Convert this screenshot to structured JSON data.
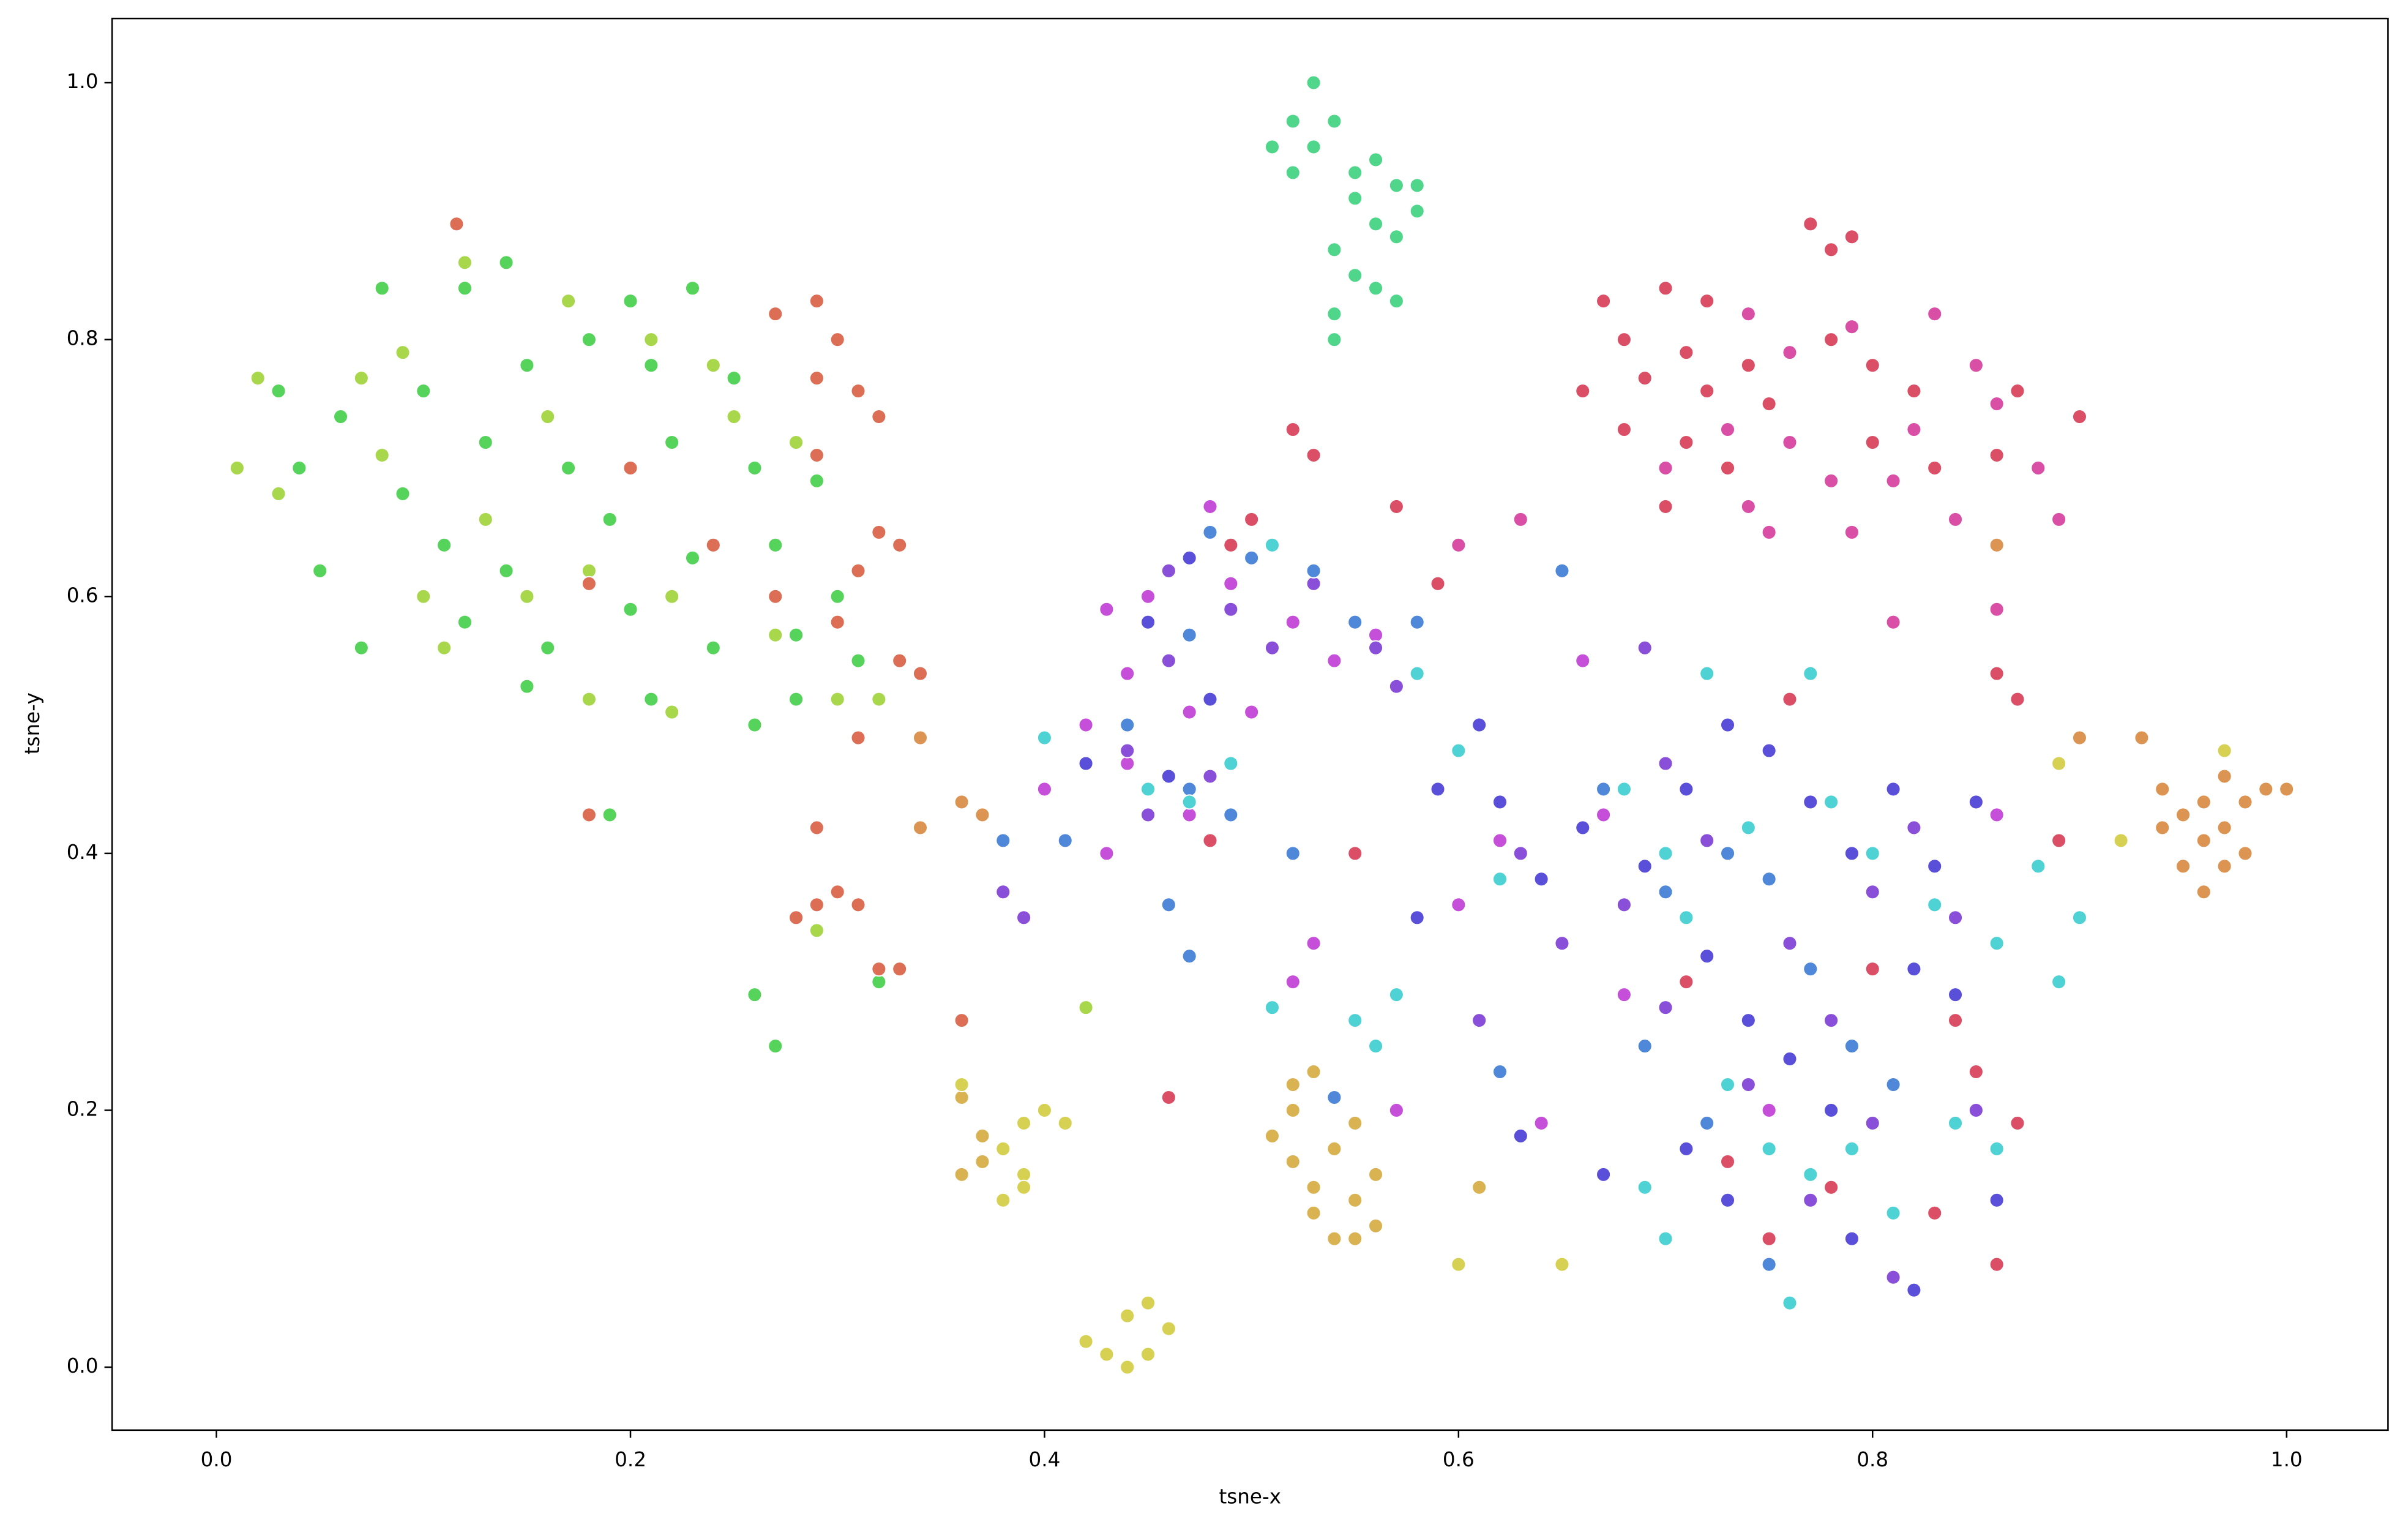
{
  "chart_data": {
    "type": "scatter",
    "xlabel": "tsne-x",
    "ylabel": "tsne-y",
    "xlim": [
      -0.0504,
      1.049
    ],
    "ylim": [
      -0.049,
      1.05
    ],
    "xticks": [
      {
        "value": 0,
        "label": "0.0"
      },
      {
        "value": 0.2,
        "label": "0.2"
      },
      {
        "value": 0.4,
        "label": "0.4"
      },
      {
        "value": 0.6,
        "label": "0.6"
      },
      {
        "value": 0.8,
        "label": "0.8"
      },
      {
        "value": 1,
        "label": "1.0"
      }
    ],
    "yticks": [
      {
        "value": 0,
        "label": "0.0"
      },
      {
        "value": 0.2,
        "label": "0.2"
      },
      {
        "value": 0.4,
        "label": "0.4"
      },
      {
        "value": 0.6,
        "label": "0.6"
      },
      {
        "value": 0.8,
        "label": "0.8"
      },
      {
        "value": 1,
        "label": "1.0"
      }
    ],
    "series": [
      {
        "color": "#56d35a",
        "x": [
          0.12,
          0.14,
          0.2,
          0.23,
          0.08,
          0.03,
          0.06,
          0.1,
          0.15,
          0.18,
          0.21,
          0.25,
          0.04,
          0.09,
          0.13,
          0.17,
          0.22,
          0.26,
          0.29,
          0.05,
          0.11,
          0.14,
          0.19,
          0.23,
          0.27,
          0.3,
          0.07,
          0.12,
          0.16,
          0.2,
          0.24,
          0.28,
          0.31,
          0.15,
          0.21,
          0.26,
          0.28,
          0.19,
          0.32,
          0.26,
          0.27
        ],
        "y": [
          0.84,
          0.86,
          0.83,
          0.84,
          0.84,
          0.76,
          0.74,
          0.76,
          0.78,
          0.8,
          0.78,
          0.77,
          0.7,
          0.68,
          0.72,
          0.7,
          0.72,
          0.7,
          0.69,
          0.62,
          0.64,
          0.62,
          0.66,
          0.63,
          0.64,
          0.6,
          0.56,
          0.58,
          0.56,
          0.59,
          0.56,
          0.57,
          0.55,
          0.53,
          0.52,
          0.5,
          0.52,
          0.43,
          0.3,
          0.29,
          0.25
        ]
      },
      {
        "color": "#a8d74c",
        "x": [
          0.01,
          0.02,
          0.07,
          0.09,
          0.12,
          0.17,
          0.21,
          0.24,
          0.03,
          0.08,
          0.13,
          0.16,
          0.2,
          0.25,
          0.28,
          0.1,
          0.15,
          0.18,
          0.22,
          0.27,
          0.11,
          0.18,
          0.22,
          0.3,
          0.32,
          0.29,
          0.42
        ],
        "y": [
          0.7,
          0.77,
          0.77,
          0.79,
          0.86,
          0.83,
          0.8,
          0.78,
          0.68,
          0.71,
          0.66,
          0.74,
          0.7,
          0.74,
          0.72,
          0.6,
          0.6,
          0.62,
          0.6,
          0.57,
          0.56,
          0.52,
          0.51,
          0.52,
          0.52,
          0.34,
          0.28
        ]
      },
      {
        "color": "#dc6e55",
        "x": [
          0.116,
          0.27,
          0.29,
          0.3,
          0.29,
          0.31,
          0.32,
          0.2,
          0.29,
          0.27,
          0.31,
          0.32,
          0.33,
          0.3,
          0.33,
          0.34,
          0.31,
          0.18,
          0.18,
          0.29,
          0.29,
          0.3,
          0.31,
          0.28,
          0.32,
          0.33,
          0.36,
          0.24
        ],
        "y": [
          0.89,
          0.82,
          0.83,
          0.8,
          0.77,
          0.76,
          0.74,
          0.7,
          0.71,
          0.6,
          0.62,
          0.65,
          0.64,
          0.58,
          0.55,
          0.54,
          0.49,
          0.61,
          0.43,
          0.42,
          0.36,
          0.37,
          0.36,
          0.35,
          0.31,
          0.31,
          0.27,
          0.64
        ]
      },
      {
        "color": "#4fd68b",
        "x": [
          0.51,
          0.52,
          0.53,
          0.54,
          0.53,
          0.55,
          0.56,
          0.57,
          0.58,
          0.55,
          0.56,
          0.54,
          0.57,
          0.55,
          0.56,
          0.54,
          0.57,
          0.54,
          0.52,
          0.58
        ],
        "y": [
          0.95,
          0.97,
          1.0,
          0.97,
          0.95,
          0.93,
          0.94,
          0.92,
          0.92,
          0.91,
          0.89,
          0.87,
          0.88,
          0.85,
          0.84,
          0.82,
          0.83,
          0.8,
          0.93,
          0.9
        ]
      },
      {
        "color": "#db4f66",
        "x": [
          0.67,
          0.7,
          0.72,
          0.68,
          0.71,
          0.74,
          0.66,
          0.69,
          0.72,
          0.75,
          0.68,
          0.71,
          0.73,
          0.7,
          0.77,
          0.78,
          0.79,
          0.78,
          0.8,
          0.82,
          0.8,
          0.83,
          0.86,
          0.87,
          0.9,
          0.86,
          0.87,
          0.52,
          0.53,
          0.57,
          0.59,
          0.49,
          0.5,
          0.71,
          0.73,
          0.75,
          0.84,
          0.85,
          0.87,
          0.83,
          0.86,
          0.78,
          0.89,
          0.8,
          0.46,
          0.48,
          0.55,
          0.76
        ],
        "y": [
          0.83,
          0.84,
          0.83,
          0.8,
          0.79,
          0.78,
          0.76,
          0.77,
          0.76,
          0.75,
          0.73,
          0.72,
          0.7,
          0.67,
          0.89,
          0.87,
          0.88,
          0.8,
          0.78,
          0.76,
          0.72,
          0.7,
          0.71,
          0.76,
          0.74,
          0.54,
          0.52,
          0.73,
          0.71,
          0.67,
          0.61,
          0.64,
          0.66,
          0.3,
          0.16,
          0.1,
          0.27,
          0.23,
          0.19,
          0.12,
          0.08,
          0.14,
          0.41,
          0.31,
          0.21,
          0.41,
          0.4,
          0.52
        ]
      },
      {
        "color": "#d94fa5",
        "x": [
          0.74,
          0.76,
          0.79,
          0.83,
          0.85,
          0.86,
          0.82,
          0.76,
          0.78,
          0.81,
          0.84,
          0.86,
          0.88,
          0.89,
          0.74,
          0.75,
          0.79,
          0.7,
          0.73,
          0.86,
          0.81,
          0.6,
          0.63
        ],
        "y": [
          0.82,
          0.79,
          0.81,
          0.82,
          0.78,
          0.75,
          0.73,
          0.72,
          0.69,
          0.69,
          0.66,
          0.64,
          0.7,
          0.66,
          0.67,
          0.65,
          0.65,
          0.7,
          0.73,
          0.59,
          0.58,
          0.64,
          0.66
        ]
      },
      {
        "color": "#c54fd9",
        "x": [
          0.48,
          0.49,
          0.52,
          0.54,
          0.56,
          0.45,
          0.43,
          0.44,
          0.47,
          0.5,
          0.42,
          0.43,
          0.47,
          0.52,
          0.53,
          0.57,
          0.64,
          0.66,
          0.67,
          0.68,
          0.6,
          0.62,
          0.4,
          0.44,
          0.75,
          0.86
        ],
        "y": [
          0.67,
          0.61,
          0.58,
          0.55,
          0.57,
          0.6,
          0.59,
          0.54,
          0.51,
          0.51,
          0.5,
          0.4,
          0.43,
          0.3,
          0.33,
          0.2,
          0.19,
          0.55,
          0.43,
          0.29,
          0.36,
          0.41,
          0.45,
          0.47,
          0.2,
          0.43
        ]
      },
      {
        "color": "#8a4fd9",
        "x": [
          0.46,
          0.49,
          0.51,
          0.53,
          0.56,
          0.57,
          0.46,
          0.44,
          0.48,
          0.45,
          0.39,
          0.38,
          0.63,
          0.65,
          0.68,
          0.7,
          0.72,
          0.76,
          0.78,
          0.8,
          0.82,
          0.84,
          0.74,
          0.8,
          0.77,
          0.7,
          0.61,
          0.69,
          0.85,
          0.81
        ],
        "y": [
          0.62,
          0.59,
          0.56,
          0.61,
          0.56,
          0.53,
          0.55,
          0.48,
          0.46,
          0.43,
          0.35,
          0.37,
          0.4,
          0.33,
          0.36,
          0.47,
          0.41,
          0.33,
          0.27,
          0.37,
          0.42,
          0.35,
          0.22,
          0.19,
          0.13,
          0.28,
          0.27,
          0.56,
          0.2,
          0.07
        ]
      },
      {
        "color": "#5a4fd9",
        "x": [
          0.47,
          0.45,
          0.48,
          0.42,
          0.46,
          0.59,
          0.61,
          0.62,
          0.64,
          0.66,
          0.69,
          0.71,
          0.73,
          0.75,
          0.77,
          0.79,
          0.81,
          0.83,
          0.85,
          0.72,
          0.74,
          0.76,
          0.78,
          0.82,
          0.84,
          0.71,
          0.73,
          0.79,
          0.82,
          0.86,
          0.67,
          0.63,
          0.58
        ],
        "y": [
          0.63,
          0.58,
          0.52,
          0.47,
          0.46,
          0.45,
          0.5,
          0.44,
          0.38,
          0.42,
          0.39,
          0.45,
          0.5,
          0.48,
          0.44,
          0.4,
          0.45,
          0.39,
          0.44,
          0.32,
          0.27,
          0.24,
          0.2,
          0.31,
          0.29,
          0.17,
          0.13,
          0.1,
          0.06,
          0.13,
          0.15,
          0.18,
          0.35
        ]
      },
      {
        "color": "#4f87d9",
        "x": [
          0.48,
          0.5,
          0.53,
          0.55,
          0.58,
          0.47,
          0.44,
          0.47,
          0.49,
          0.46,
          0.47,
          0.52,
          0.65,
          0.67,
          0.7,
          0.73,
          0.75,
          0.77,
          0.79,
          0.81,
          0.69,
          0.72,
          0.75,
          0.54,
          0.62,
          0.41,
          0.38
        ],
        "y": [
          0.65,
          0.63,
          0.62,
          0.58,
          0.58,
          0.57,
          0.5,
          0.45,
          0.43,
          0.36,
          0.32,
          0.4,
          0.62,
          0.45,
          0.37,
          0.4,
          0.38,
          0.31,
          0.25,
          0.22,
          0.25,
          0.19,
          0.08,
          0.21,
          0.23,
          0.41,
          0.41
        ]
      },
      {
        "color": "#4fd2d4",
        "x": [
          0.51,
          0.49,
          0.47,
          0.45,
          0.4,
          0.55,
          0.56,
          0.57,
          0.58,
          0.6,
          0.62,
          0.68,
          0.7,
          0.72,
          0.74,
          0.77,
          0.78,
          0.8,
          0.83,
          0.86,
          0.88,
          0.89,
          0.9,
          0.71,
          0.73,
          0.75,
          0.77,
          0.79,
          0.81,
          0.7,
          0.76,
          0.69,
          0.84,
          0.86,
          0.51
        ],
        "y": [
          0.64,
          0.47,
          0.44,
          0.45,
          0.49,
          0.27,
          0.25,
          0.29,
          0.54,
          0.48,
          0.38,
          0.45,
          0.4,
          0.54,
          0.42,
          0.54,
          0.44,
          0.4,
          0.36,
          0.33,
          0.39,
          0.3,
          0.35,
          0.35,
          0.22,
          0.17,
          0.15,
          0.17,
          0.12,
          0.1,
          0.05,
          0.14,
          0.19,
          0.17,
          0.28
        ]
      },
      {
        "color": "#dc9452",
        "x": [
          0.94,
          0.95,
          0.96,
          0.97,
          0.98,
          0.99,
          1.0,
          0.94,
          0.96,
          0.97,
          0.98,
          0.95,
          0.96,
          0.97,
          0.93,
          0.9,
          0.86,
          0.36,
          0.37,
          0.34,
          0.34
        ],
        "y": [
          0.45,
          0.43,
          0.44,
          0.46,
          0.44,
          0.45,
          0.45,
          0.42,
          0.41,
          0.42,
          0.4,
          0.39,
          0.37,
          0.39,
          0.49,
          0.49,
          0.64,
          0.44,
          0.43,
          0.42,
          0.49
        ]
      },
      {
        "color": "#d9b252",
        "x": [
          0.51,
          0.52,
          0.53,
          0.52,
          0.53,
          0.54,
          0.55,
          0.56,
          0.53,
          0.55,
          0.54,
          0.56,
          0.52,
          0.55,
          0.61,
          0.36,
          0.37,
          0.36,
          0.37
        ],
        "y": [
          0.18,
          0.22,
          0.23,
          0.16,
          0.14,
          0.17,
          0.19,
          0.15,
          0.12,
          0.1,
          0.1,
          0.11,
          0.2,
          0.13,
          0.14,
          0.21,
          0.16,
          0.15,
          0.18
        ]
      },
      {
        "color": "#d6d152",
        "x": [
          0.38,
          0.39,
          0.4,
          0.41,
          0.39,
          0.38,
          0.39,
          0.36,
          0.42,
          0.43,
          0.44,
          0.45,
          0.44,
          0.45,
          0.46,
          0.6,
          0.65,
          0.89,
          0.92,
          0.97
        ],
        "y": [
          0.17,
          0.19,
          0.2,
          0.19,
          0.15,
          0.13,
          0.14,
          0.22,
          0.02,
          0.01,
          0.0,
          0.01,
          0.04,
          0.05,
          0.03,
          0.08,
          0.08,
          0.47,
          0.41,
          0.48
        ]
      }
    ]
  }
}
